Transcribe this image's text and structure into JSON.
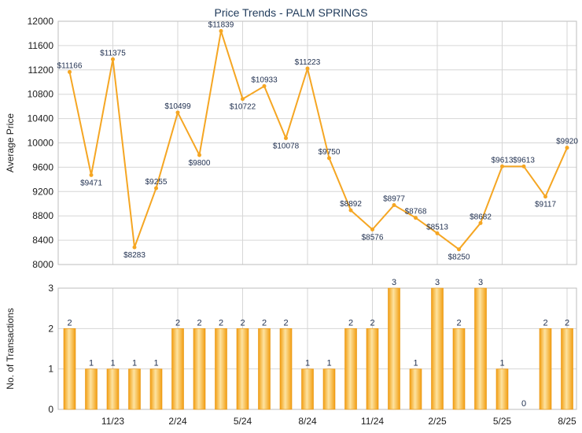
{
  "chart_data": [
    {
      "type": "line",
      "title": "Price Trends - PALM SPRINGS",
      "ylabel": "Average Price",
      "ylim": [
        8000,
        12000
      ],
      "yticks": [
        8000,
        8400,
        8800,
        9200,
        9600,
        10000,
        10400,
        10800,
        11200,
        11600,
        12000
      ],
      "xtick_labels": [
        "11/23",
        "2/24",
        "5/24",
        "8/24",
        "11/24",
        "2/25",
        "5/25",
        "8/25"
      ],
      "xtick_positions": [
        2,
        5,
        8,
        11,
        14,
        17,
        20,
        23
      ],
      "values": [
        11166,
        9471,
        11375,
        8283,
        9255,
        10499,
        9800,
        11839,
        10722,
        10933,
        10078,
        11223,
        9750,
        8892,
        8576,
        8977,
        8768,
        8513,
        8250,
        8682,
        9613,
        9613,
        9117,
        9920
      ],
      "labels": [
        "$11166",
        "$9471",
        "$11375",
        "$8283",
        "$9255",
        "$10499",
        "$9800",
        "$11839",
        "$10722",
        "$10933",
        "$10078",
        "$11223",
        "$9750",
        "$8892",
        "$8576",
        "$8977",
        "$8768",
        "$8513",
        "$8250",
        "$8682",
        "$9613",
        "$9613",
        "$9117",
        "$9920"
      ],
      "line_color": "#f5a623",
      "grid": true
    },
    {
      "type": "bar",
      "ylabel": "No. of Transactions",
      "ylim": [
        0,
        3
      ],
      "yticks": [
        0,
        1,
        2,
        3
      ],
      "values": [
        2,
        1,
        1,
        1,
        1,
        2,
        2,
        2,
        2,
        2,
        2,
        1,
        1,
        2,
        2,
        3,
        1,
        3,
        2,
        3,
        1,
        0,
        2,
        2
      ],
      "bar_color": "#f5a623",
      "grid": true
    }
  ]
}
